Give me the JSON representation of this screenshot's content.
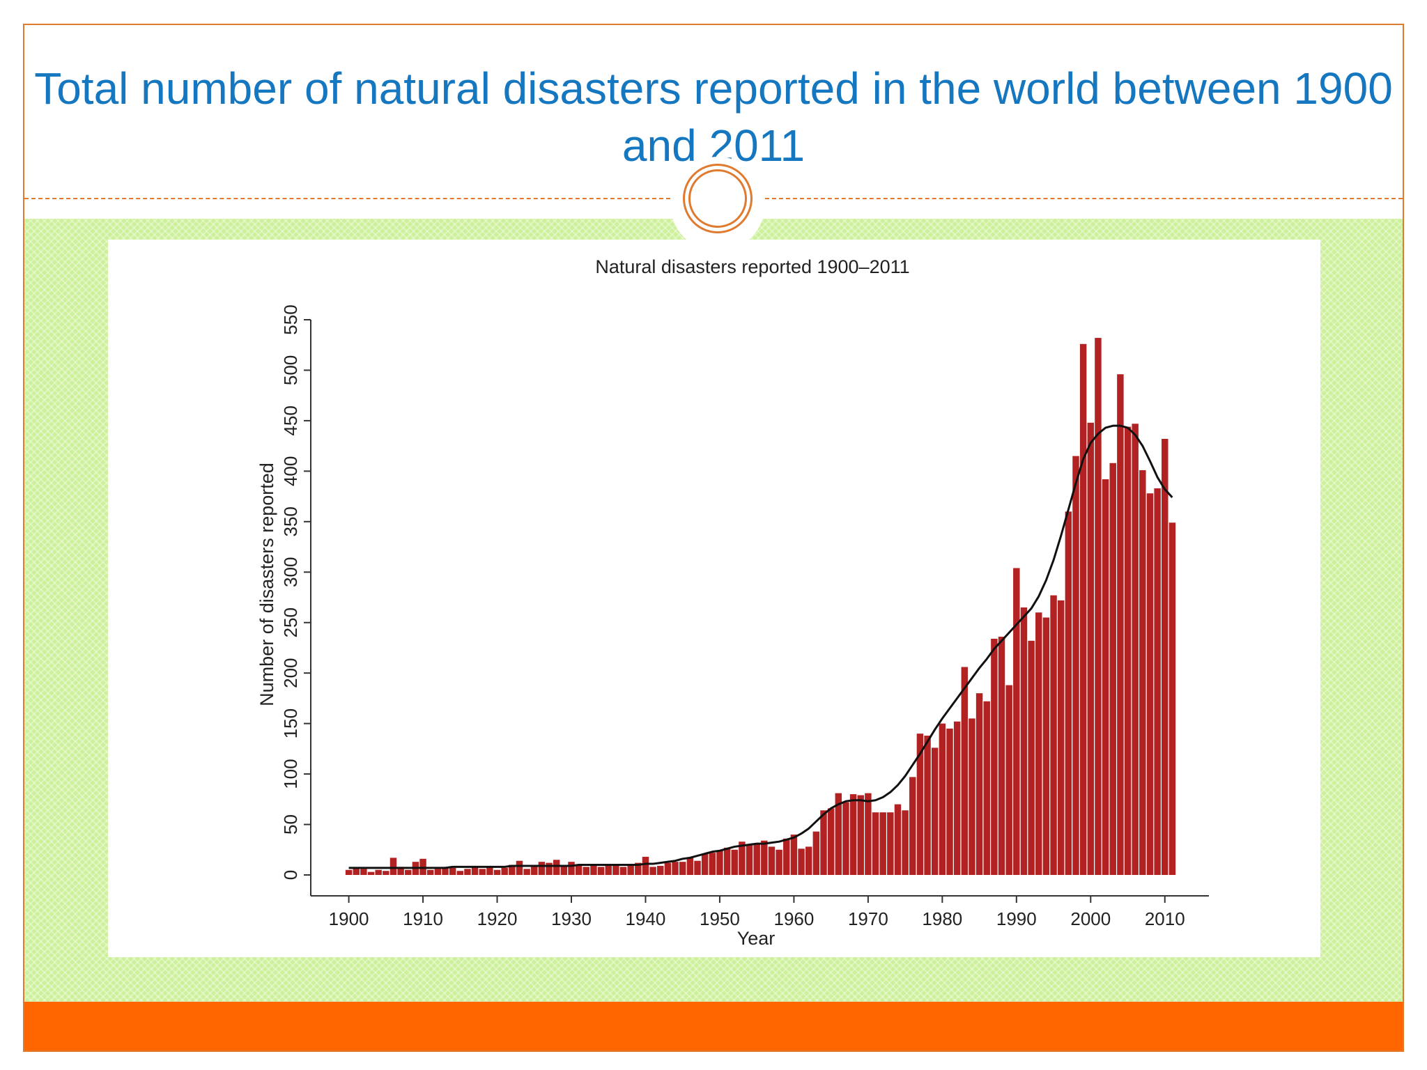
{
  "slide": {
    "title": "Total number of natural disasters reported in the world between 1900 and 2011",
    "accent_color": "#e07a2f",
    "title_color": "#1577c0",
    "band_color": "#cdf09a",
    "footer_color": "#ff6600"
  },
  "chart_data": {
    "type": "bar",
    "title": "Natural disasters reported 1900–2011",
    "xlabel": "Year",
    "ylabel": "Number of disasters reported",
    "xlim": [
      1896,
      2015
    ],
    "ylim": [
      0,
      550
    ],
    "x_ticks": [
      1900,
      1910,
      1920,
      1930,
      1940,
      1950,
      1960,
      1970,
      1980,
      1990,
      2000,
      2010
    ],
    "y_ticks": [
      0,
      50,
      100,
      150,
      200,
      250,
      300,
      350,
      400,
      450,
      500,
      550
    ],
    "grid": false,
    "bar_color": "#b22222",
    "series": [
      {
        "values": [
          5,
          7,
          6,
          3,
          5,
          4,
          17,
          8,
          5,
          13,
          16,
          5,
          6,
          8,
          7,
          4,
          6,
          9,
          6,
          8,
          5,
          7,
          10,
          14,
          6,
          8,
          13,
          12,
          15,
          9,
          13,
          10,
          8,
          9,
          8,
          11,
          9,
          8,
          10,
          12,
          18,
          8,
          9,
          12,
          13,
          13,
          17,
          14,
          21,
          22,
          24,
          27,
          25,
          33,
          30,
          31,
          34,
          28,
          25,
          36,
          40,
          26,
          28,
          43,
          64,
          66,
          81,
          72,
          80,
          79,
          81,
          62,
          62,
          62,
          70,
          64,
          97,
          140,
          138,
          126,
          150,
          145,
          152,
          206,
          155,
          180,
          172,
          234,
          236,
          188,
          304,
          265,
          232,
          260,
          255,
          277,
          272,
          360,
          415,
          526,
          448,
          532,
          392,
          408,
          496,
          444,
          447,
          401,
          378,
          383,
          432,
          349
        ]
      },
      {
        "type": "line",
        "values": [
          7,
          7,
          7,
          7,
          7,
          7,
          7,
          7,
          7,
          7,
          7,
          7,
          7,
          7,
          8,
          8,
          8,
          8,
          8,
          8,
          8,
          8,
          9,
          9,
          9,
          9,
          9,
          9,
          9,
          9,
          9,
          10,
          10,
          10,
          10,
          10,
          10,
          10,
          10,
          10,
          11,
          11,
          12,
          13,
          14,
          16,
          17,
          19,
          21,
          23,
          24,
          26,
          28,
          29,
          30,
          31,
          31,
          32,
          33,
          35,
          37,
          41,
          46,
          53,
          60,
          66,
          70,
          73,
          74,
          74,
          73,
          74,
          77,
          82,
          89,
          98,
          109,
          120,
          132,
          144,
          155,
          165,
          175,
          185,
          195,
          205,
          214,
          224,
          232,
          240,
          248,
          256,
          264,
          276,
          292,
          312,
          336,
          362,
          388,
          412,
          428,
          437,
          443,
          445,
          445,
          443,
          436,
          425,
          410,
          394,
          382,
          374
        ]
      }
    ]
  }
}
